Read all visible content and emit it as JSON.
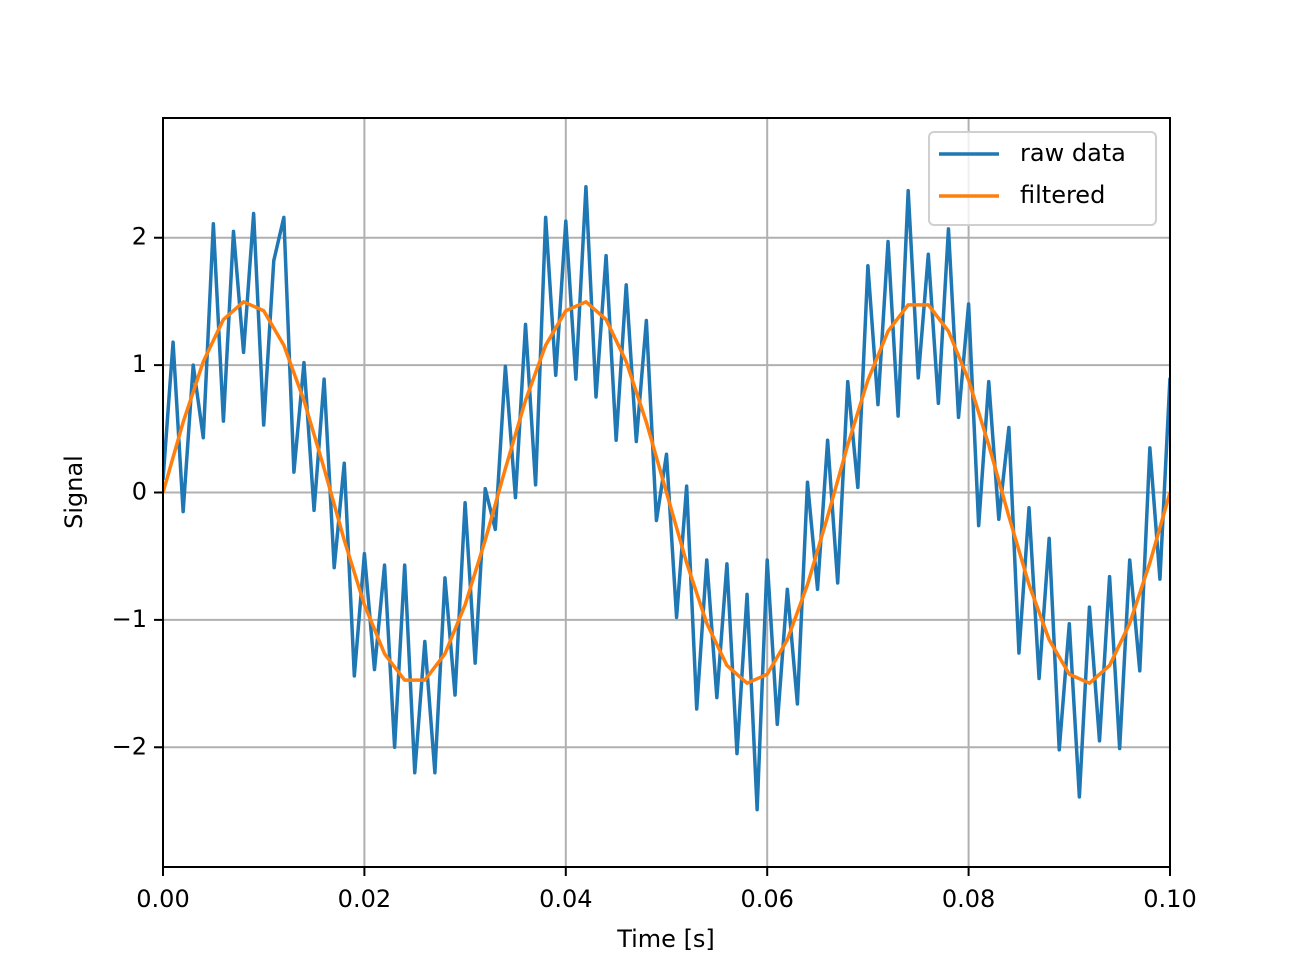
{
  "chart_data": {
    "type": "line",
    "xlabel": "Time [s]",
    "ylabel": "Signal",
    "xlim": [
      0,
      0.1
    ],
    "ylim": [
      -2.94,
      2.94
    ],
    "xticks": [
      {
        "value": 0,
        "label": "0.00"
      },
      {
        "value": 0.02,
        "label": "0.02"
      },
      {
        "value": 0.04,
        "label": "0.04"
      },
      {
        "value": 0.06,
        "label": "0.06"
      },
      {
        "value": 0.08,
        "label": "0.08"
      },
      {
        "value": 0.1,
        "label": "0.10"
      }
    ],
    "yticks": [
      {
        "value": -2,
        "label": "−2"
      },
      {
        "value": -1,
        "label": "−1"
      },
      0,
      1,
      2
    ],
    "grid": true,
    "legend": "upper right",
    "series": [
      {
        "name": "raw data",
        "color": "#1f77b4",
        "x": [
          0,
          0.001,
          0.002,
          0.003,
          0.004,
          0.005,
          0.006,
          0.007,
          0.008,
          0.009,
          0.01,
          0.011,
          0.012,
          0.013,
          0.014,
          0.015,
          0.016,
          0.017,
          0.018,
          0.019,
          0.02,
          0.021,
          0.022,
          0.023,
          0.024,
          0.025,
          0.026,
          0.027,
          0.028,
          0.029,
          0.03,
          0.031,
          0.032,
          0.033,
          0.034,
          0.035,
          0.036,
          0.037,
          0.038,
          0.039,
          0.04,
          0.041,
          0.042,
          0.043,
          0.044,
          0.045,
          0.046,
          0.047,
          0.048,
          0.049,
          0.05,
          0.051,
          0.052,
          0.053,
          0.054,
          0.055,
          0.056,
          0.057,
          0.058,
          0.059,
          0.06,
          0.061,
          0.062,
          0.063,
          0.064,
          0.065,
          0.066,
          0.067,
          0.068,
          0.069,
          0.07,
          0.071,
          0.072,
          0.073,
          0.074,
          0.075,
          0.076,
          0.077,
          0.078,
          0.079,
          0.08,
          0.081,
          0.082,
          0.083,
          0.084,
          0.085,
          0.086,
          0.087,
          0.088,
          0.089,
          0.09,
          0.091,
          0.092,
          0.093,
          0.094,
          0.095,
          0.096,
          0.097,
          0.098,
          0.099,
          0.1
        ],
        "values": [
          0.1,
          1.18,
          -0.15,
          1.0,
          0.43,
          2.11,
          0.56,
          2.05,
          1.1,
          2.19,
          0.53,
          1.82,
          2.16,
          0.16,
          1.02,
          -0.14,
          0.89,
          -0.59,
          0.23,
          -1.44,
          -0.48,
          -1.39,
          -0.57,
          -2.0,
          -0.57,
          -2.2,
          -1.17,
          -2.2,
          -0.67,
          -1.59,
          -0.08,
          -1.34,
          0.03,
          -0.29,
          0.99,
          -0.04,
          1.32,
          0.06,
          2.16,
          0.92,
          2.13,
          0.89,
          2.4,
          0.75,
          1.86,
          0.41,
          1.63,
          0.4,
          1.35,
          -0.22,
          0.3,
          -0.98,
          0.05,
          -1.7,
          -0.53,
          -1.61,
          -0.56,
          -2.05,
          -0.8,
          -2.49,
          -0.53,
          -1.82,
          -0.76,
          -1.66,
          0.08,
          -0.76,
          0.41,
          -0.71,
          0.87,
          0.04,
          1.78,
          0.69,
          1.97,
          0.6,
          2.37,
          0.9,
          1.87,
          0.7,
          2.07,
          0.59,
          1.48,
          -0.26,
          0.87,
          -0.21,
          0.51,
          -1.26,
          -0.12,
          -1.46,
          -0.36,
          -2.02,
          -1.03,
          -2.39,
          -0.9,
          -1.95,
          -0.66,
          -2.01,
          -0.53,
          -1.4,
          0.35,
          -0.68,
          0.9
        ]
      },
      {
        "name": "filtered",
        "color": "#ff7f0e",
        "x": [
          0,
          0.002,
          0.004,
          0.006,
          0.008,
          0.01,
          0.012,
          0.014,
          0.016,
          0.018,
          0.02,
          0.022,
          0.024,
          0.026,
          0.028,
          0.03,
          0.032,
          0.034,
          0.036,
          0.038,
          0.04,
          0.042,
          0.044,
          0.046,
          0.048,
          0.05,
          0.052,
          0.054,
          0.056,
          0.058,
          0.06,
          0.062,
          0.064,
          0.066,
          0.068,
          0.07,
          0.072,
          0.074,
          0.076,
          0.078,
          0.08,
          0.082,
          0.084,
          0.086,
          0.088,
          0.09,
          0.092,
          0.094,
          0.096,
          0.098,
          0.1
        ],
        "values": [
          0,
          0.552,
          1.027,
          1.358,
          1.497,
          1.427,
          1.156,
          0.723,
          0.188,
          -0.374,
          -0.882,
          -1.266,
          -1.473,
          -1.473,
          -1.266,
          -0.882,
          -0.374,
          0.188,
          0.723,
          1.156,
          1.427,
          1.497,
          1.358,
          1.027,
          0.552,
          0,
          -0.552,
          -1.027,
          -1.358,
          -1.497,
          -1.427,
          -1.156,
          -0.723,
          -0.188,
          0.374,
          0.882,
          1.266,
          1.473,
          1.473,
          1.266,
          0.882,
          0.374,
          -0.188,
          -0.723,
          -1.156,
          -1.427,
          -1.497,
          -1.358,
          -1.027,
          -0.552,
          0
        ]
      }
    ]
  }
}
